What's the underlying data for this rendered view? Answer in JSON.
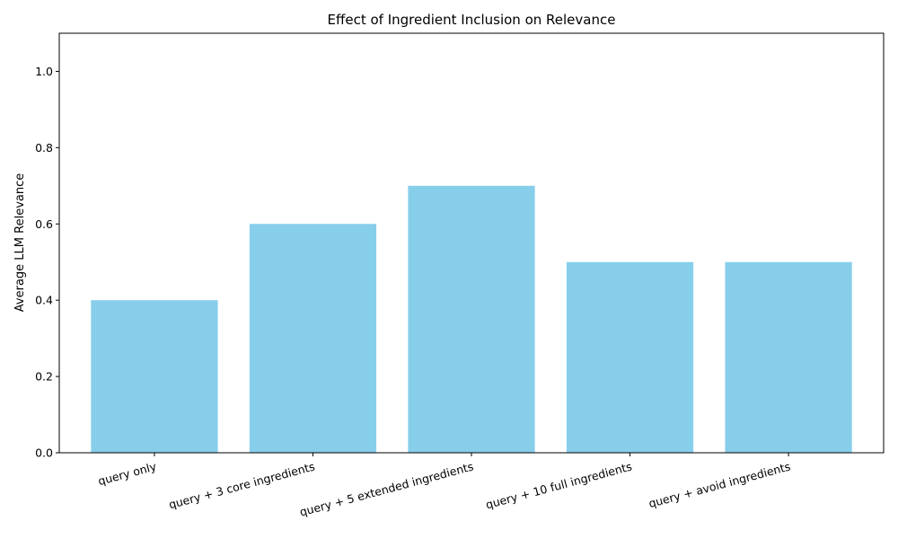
{
  "chart_data": {
    "type": "bar",
    "title": "Effect of Ingredient Inclusion on Relevance",
    "xlabel": "",
    "ylabel": "Average LLM Relevance",
    "categories": [
      "query only",
      "query + 3 core ingredients",
      "query + 5 extended ingredients",
      "query + 10 full ingredients",
      "query + avoid ingredients"
    ],
    "values": [
      0.4,
      0.6,
      0.7,
      0.5,
      0.5
    ],
    "ylim": [
      0,
      1.1
    ],
    "yticks": [
      0.0,
      0.2,
      0.4,
      0.6,
      0.8,
      1.0
    ],
    "ytick_labels": [
      "0.0",
      "0.2",
      "0.4",
      "0.6",
      "0.8",
      "1.0"
    ],
    "bar_color": "#87ceeb",
    "grid": false,
    "legend": "none"
  }
}
